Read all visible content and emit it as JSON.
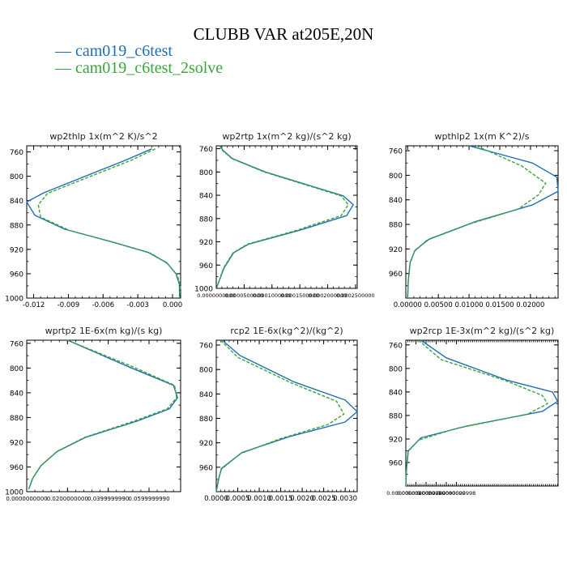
{
  "figure": {
    "title": "CLUBB VAR at205E,20N",
    "legend": [
      "cam019_c6test",
      "cam019_c6test_2solve"
    ],
    "colors": {
      "series1": "#1f6fb4",
      "series2": "#3aa53a"
    }
  },
  "chart_data": [
    {
      "type": "line",
      "title": "wp2thlp   1x(m^2 K)/s^2",
      "xlim": [
        -0.0126,
        0.0007
      ],
      "ylim": [
        1000,
        750
      ],
      "xticks": [
        "-0.012",
        "-0.009",
        "-0.006",
        "-0.003",
        "0.000"
      ],
      "xtick_values": [
        -0.012,
        -0.009,
        -0.006,
        -0.003,
        0.0
      ],
      "yticks": [
        "760",
        "800",
        "840",
        "880",
        "920",
        "960",
        "1000"
      ],
      "ytick_values": [
        760,
        800,
        840,
        880,
        920,
        960,
        1000
      ],
      "grid": false,
      "series": [
        {
          "name": "cam019_c6test",
          "points": [
            [
              -0.0018,
              755
            ],
            [
              -0.0041,
              774
            ],
            [
              -0.0111,
              827
            ],
            [
              -0.0126,
              842
            ],
            [
              -0.0119,
              864
            ],
            [
              -0.0093,
              887
            ],
            [
              -0.0052,
              908
            ],
            [
              -0.0021,
              925
            ],
            [
              -0.0005,
              942
            ],
            [
              0.0003,
              960
            ],
            [
              0.0006,
              978
            ],
            [
              0.0006,
              1000
            ]
          ]
        },
        {
          "name": "cam019_c6test_2solve",
          "points": [
            [
              -0.0015,
              755
            ],
            [
              -0.0036,
              774
            ],
            [
              -0.0108,
              828
            ],
            [
              -0.0116,
              847
            ],
            [
              -0.0114,
              867
            ],
            [
              -0.0089,
              889
            ],
            [
              -0.0048,
              910
            ],
            [
              -0.0018,
              927
            ],
            [
              -0.0004,
              944
            ],
            [
              0.0004,
              962
            ],
            [
              0.0007,
              980
            ],
            [
              0.0006,
              1000
            ]
          ]
        }
      ]
    },
    {
      "type": "line",
      "title": "wp2rtp   1x(m^2 kg)/(s^2 kg)",
      "xlim": [
        0,
        0.000253
      ],
      "ylim": [
        1000,
        755
      ],
      "xticks": [
        "0.0000000000",
        "0.0000500000",
        "0.0001000000",
        "0.0001500000",
        "0.0002000000",
        "0.0002500000"
      ],
      "xtick_values": [
        0,
        5e-05,
        0.0001,
        0.00015,
        0.0002,
        0.00025
      ],
      "yticks": [
        "760",
        "800",
        "840",
        "880",
        "920",
        "960",
        "1000"
      ],
      "ytick_values": [
        760,
        800,
        840,
        880,
        920,
        960,
        1000
      ],
      "grid": false,
      "series": [
        {
          "name": "cam019_c6test",
          "points": [
            [
              7e-06,
              755
            ],
            [
              1.2e-05,
              763
            ],
            [
              2.9e-05,
              777
            ],
            [
              8.8e-05,
              800
            ],
            [
              0.000228,
              841
            ],
            [
              0.000246,
              856
            ],
            [
              0.000234,
              875
            ],
            [
              0.00015,
              900
            ],
            [
              5.8e-05,
              924
            ],
            [
              3.1e-05,
              939
            ],
            [
              1.4e-05,
              965
            ],
            [
              4e-06,
              990
            ],
            [
              1e-06,
              998
            ]
          ]
        },
        {
          "name": "cam019_c6test_2solve",
          "points": [
            [
              6e-06,
              755
            ],
            [
              1.1e-05,
              763
            ],
            [
              2.8e-05,
              777
            ],
            [
              8.6e-05,
              800
            ],
            [
              0.000224,
              841
            ],
            [
              0.000237,
              856
            ],
            [
              0.000224,
              875
            ],
            [
              0.000145,
              900
            ],
            [
              5.6e-05,
              924
            ],
            [
              3e-05,
              939
            ],
            [
              1.3e-05,
              965
            ],
            [
              4e-06,
              990
            ],
            [
              1e-06,
              998
            ]
          ]
        }
      ]
    },
    {
      "type": "line",
      "title": "wpthlp2   1x(m K^2)/s",
      "xlim": [
        -0.0003,
        0.0245
      ],
      "ylim": [
        1000,
        752
      ],
      "xticks": [
        "0.00000",
        "0.00500",
        "0.01000",
        "0.01500",
        "0.02000"
      ],
      "xtick_values": [
        0,
        0.005,
        0.01,
        0.015,
        0.02
      ],
      "yticks": [
        "760",
        "800",
        "840",
        "880",
        "920",
        "960"
      ],
      "ytick_values": [
        760,
        800,
        840,
        880,
        920,
        960
      ],
      "grid": false,
      "series": [
        {
          "name": "cam019_c6test",
          "points": [
            [
              0.01,
              752
            ],
            [
              0.0203,
              780
            ],
            [
              0.0243,
              803
            ],
            [
              0.0245,
              826
            ],
            [
              0.0204,
              848
            ],
            [
              0.0112,
              875
            ],
            [
              0.0035,
              904
            ],
            [
              0.0012,
              922
            ],
            [
              0.0004,
              942
            ],
            [
              0.0001,
              972
            ],
            [
              0.0,
              1000
            ]
          ]
        },
        {
          "name": "cam019_c6test_2solve",
          "points": [
            [
              0.0112,
              752
            ],
            [
              0.0186,
              785
            ],
            [
              0.0225,
              813
            ],
            [
              0.0213,
              832
            ],
            [
              0.018,
              855
            ],
            [
              0.0099,
              880
            ],
            [
              0.0031,
              906
            ],
            [
              0.0011,
              924
            ],
            [
              0.0004,
              944
            ],
            [
              0.0001,
              974
            ],
            [
              0.0,
              1000
            ]
          ]
        }
      ]
    },
    {
      "type": "line",
      "title": "wprtp2   1E-6x(m kg)/(s kg)",
      "xlim": [
        0,
        0.0755
      ],
      "ylim": [
        1000,
        755
      ],
      "xticks": [
        "0.0000000000",
        "0.0200000000",
        "0.0399999990",
        "0.0599999990"
      ],
      "xtick_values": [
        0,
        0.02,
        0.04,
        0.06
      ],
      "yticks": [
        "760",
        "800",
        "840",
        "880",
        "920",
        "960",
        "1000"
      ],
      "ytick_values": [
        760,
        800,
        840,
        880,
        920,
        960,
        1000
      ],
      "grid": false,
      "series": [
        {
          "name": "cam019_c6test",
          "points": [
            [
              0.02,
              755
            ],
            [
              0.05,
              798
            ],
            [
              0.072,
              828
            ],
            [
              0.074,
              848
            ],
            [
              0.07,
              866
            ],
            [
              0.054,
              886
            ],
            [
              0.029,
              912
            ],
            [
              0.015,
              935
            ],
            [
              0.007,
              958
            ],
            [
              0.003,
              978
            ],
            [
              0.001,
              996
            ]
          ]
        },
        {
          "name": "cam019_c6test_2solve",
          "points": [
            [
              0.02,
              755
            ],
            [
              0.052,
              798
            ],
            [
              0.0725,
              828
            ],
            [
              0.0735,
              848
            ],
            [
              0.069,
              866
            ],
            [
              0.0525,
              886
            ],
            [
              0.0285,
              912
            ],
            [
              0.0148,
              935
            ],
            [
              0.0069,
              958
            ],
            [
              0.003,
              978
            ],
            [
              0.001,
              996
            ]
          ]
        }
      ]
    },
    {
      "type": "line",
      "title": "rcp2   1E-6x(kg^2)/(kg^2)",
      "xlim": [
        0,
        0.00328
      ],
      "ylim": [
        1000,
        752
      ],
      "xticks": [
        "0.0000",
        "0.0005",
        "0.0010",
        "0.0015",
        "0.0020",
        "0.0025",
        "0.0030"
      ],
      "xtick_values": [
        0,
        0.0005,
        0.001,
        0.0015,
        0.002,
        0.0025,
        0.003
      ],
      "yticks": [
        "760",
        "800",
        "840",
        "880",
        "920",
        "960"
      ],
      "ytick_values": [
        760,
        800,
        840,
        880,
        920,
        960
      ],
      "grid": false,
      "series": [
        {
          "name": "cam019_c6test",
          "points": [
            [
              0.00014,
              752
            ],
            [
              0.00055,
              777
            ],
            [
              0.0018,
              820
            ],
            [
              0.003,
              850
            ],
            [
              0.00328,
              869
            ],
            [
              0.003,
              886
            ],
            [
              0.0017,
              910
            ],
            [
              0.0006,
              936
            ],
            [
              0.00012,
              962
            ],
            [
              5e-05,
              980
            ],
            [
              0.0,
              1000
            ]
          ]
        },
        {
          "name": "cam019_c6test_2solve",
          "points": [
            [
              0.0001,
              752
            ],
            [
              0.0005,
              780
            ],
            [
              0.00175,
              822
            ],
            [
              0.0028,
              852
            ],
            [
              0.00297,
              873
            ],
            [
              0.0026,
              890
            ],
            [
              0.0015,
              913
            ],
            [
              0.00055,
              938
            ],
            [
              0.00011,
              964
            ],
            [
              5e-05,
              982
            ],
            [
              0.0,
              1000
            ]
          ]
        }
      ]
    },
    {
      "type": "line",
      "title": "wp2rcp   1E-3x(m^2 kg)/(s^2 kg)",
      "xlim": [
        0,
        3.01e-05
      ],
      "ylim": [
        1000,
        752
      ],
      "xticks": [
        "0.0000000000",
        "0.0000020000",
        "0.0000039999",
        "0.0000060000",
        "0.0000080000",
        "0.0000099998"
      ],
      "xtick_values": [
        0,
        2e-06,
        4e-06,
        6e-06,
        8e-06,
        1e-05
      ],
      "yticks": [
        "760",
        "800",
        "840",
        "880",
        "920",
        "960"
      ],
      "ytick_values": [
        760,
        800,
        840,
        880,
        920,
        960
      ],
      "grid": false,
      "series": [
        {
          "name": "cam019_c6test",
          "points": [
            [
              3e-06,
              752
            ],
            [
              8e-06,
              782
            ],
            [
              2e-05,
              820
            ],
            [
              2.9e-05,
              840
            ],
            [
              3e-05,
              856
            ],
            [
              2.7e-05,
              873
            ],
            [
              1.2e-05,
              898
            ],
            [
              3e-06,
              918
            ],
            [
              5e-07,
              940
            ],
            [
              1e-07,
              975
            ],
            [
              0.0,
              1000
            ]
          ]
        },
        {
          "name": "cam019_c6test_2solve",
          "points": [
            [
              2.5e-06,
              752
            ],
            [
              7e-06,
              785
            ],
            [
              1.95e-05,
              820
            ],
            [
              2.7e-05,
              846
            ],
            [
              2.8e-05,
              860
            ],
            [
              2.4e-05,
              878
            ],
            [
              1e-05,
              902
            ],
            [
              2.5e-06,
              922
            ],
            [
              4e-07,
              942
            ],
            [
              1e-07,
              976
            ],
            [
              0.0,
              1000
            ]
          ]
        }
      ]
    }
  ]
}
